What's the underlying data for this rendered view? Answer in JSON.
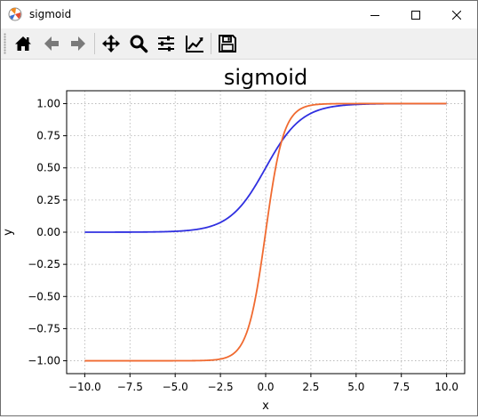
{
  "window": {
    "title": "sigmoid",
    "icons": {
      "app": "matplotlib-icon",
      "minimize": "minimize-icon",
      "maximize": "maximize-icon",
      "close": "close-icon"
    }
  },
  "toolbar": {
    "tools": [
      {
        "name": "home-button",
        "icon": "home-icon"
      },
      {
        "name": "back-button",
        "icon": "arrow-left-icon"
      },
      {
        "name": "forward-button",
        "icon": "arrow-right-icon"
      },
      {
        "name": "pan-button",
        "icon": "move-icon"
      },
      {
        "name": "zoom-button",
        "icon": "magnifier-icon"
      },
      {
        "name": "subplots-button",
        "icon": "sliders-icon"
      },
      {
        "name": "edit-axis-button",
        "icon": "line-chart-icon"
      },
      {
        "name": "save-button",
        "icon": "floppy-disk-icon"
      }
    ]
  },
  "chart_data": {
    "type": "line",
    "title": "sigmoid",
    "xlabel": "x",
    "ylabel": "y",
    "xlim": [
      -11.0,
      11.0
    ],
    "ylim": [
      -1.1,
      1.1
    ],
    "xticks": [
      -10.0,
      -7.5,
      -5.0,
      -2.5,
      0.0,
      2.5,
      5.0,
      7.5,
      10.0
    ],
    "xtick_labels": [
      "−10.0",
      "−7.5",
      "−5.0",
      "−2.5",
      "0.0",
      "2.5",
      "5.0",
      "7.5",
      "10.0"
    ],
    "yticks": [
      -1.0,
      -0.75,
      -0.5,
      -0.25,
      0.0,
      0.25,
      0.5,
      0.75,
      1.0
    ],
    "ytick_labels": [
      "−1.00",
      "−0.75",
      "−0.50",
      "−0.25",
      "0.00",
      "0.25",
      "0.50",
      "0.75",
      "1.00"
    ],
    "grid": true,
    "x_range": [
      -10.0,
      10.0
    ],
    "series": [
      {
        "color": "#3030e0",
        "formula": "sigmoid(x) = 1/(1+e^-x)"
      },
      {
        "color": "#f06a30",
        "formula": "tanh(x)"
      }
    ]
  }
}
